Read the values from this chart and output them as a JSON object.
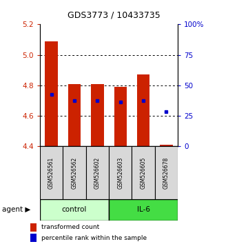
{
  "title": "GDS3773 / 10433735",
  "samples": [
    "GSM526561",
    "GSM526562",
    "GSM526602",
    "GSM526603",
    "GSM526605",
    "GSM526678"
  ],
  "bar_bottoms": [
    4.4,
    4.4,
    4.4,
    4.4,
    4.4,
    4.4
  ],
  "bar_tops": [
    5.09,
    4.81,
    4.81,
    4.79,
    4.87,
    4.41
  ],
  "blue_dot_values": [
    4.74,
    4.7,
    4.7,
    4.69,
    4.7,
    4.63
  ],
  "ylim": [
    4.4,
    5.2
  ],
  "yticks_left": [
    4.4,
    4.6,
    4.8,
    5.0,
    5.2
  ],
  "yticks_right_labels": [
    "0",
    "25",
    "50",
    "75",
    "100%"
  ],
  "yticks_right_vals": [
    4.4,
    4.6,
    4.8,
    5.0,
    5.2
  ],
  "bar_color": "#cc2200",
  "dot_color": "#0000cc",
  "control_color": "#ccffcc",
  "il6_color": "#44dd44",
  "sample_bg_color": "#d8d8d8",
  "title_color": "#000000",
  "ylabel_left_color": "#cc2200",
  "ylabel_right_color": "#0000cc",
  "gridline_color": "#555555"
}
